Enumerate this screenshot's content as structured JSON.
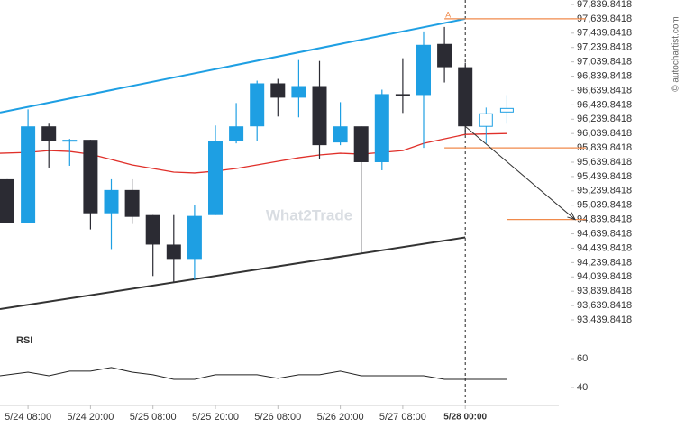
{
  "chart_data": {
    "type": "candlestick",
    "categories": [
      null,
      "5/24 08:00",
      null,
      null,
      "5/24 20:00",
      null,
      null,
      "5/25 08:00",
      null,
      null,
      "5/25 20:00",
      null,
      null,
      "5/26 08:00",
      null,
      null,
      "5/26 20:00",
      null,
      null,
      "5/27 08:00",
      null,
      null,
      "5/28 00:00"
    ],
    "candles": {
      "open": [
        95402,
        94790,
        96140,
        95940,
        95952,
        94927,
        95252,
        94902,
        94490,
        94290,
        94902,
        95940,
        96140,
        96740,
        96540,
        96702,
        95915,
        96140,
        95640,
        96590,
        96577,
        97290,
        96965
      ],
      "high": [
        95402,
        96377,
        96177,
        95965,
        95952,
        95402,
        95402,
        94902,
        94902,
        95040,
        96152,
        96465,
        96777,
        96802,
        97065,
        97052,
        96477,
        96140,
        96652,
        97090,
        97465,
        97527,
        97027
      ],
      "low": [
        94790,
        94790,
        95565,
        95590,
        94702,
        94427,
        94777,
        94052,
        93965,
        94002,
        94902,
        95902,
        95940,
        96277,
        96265,
        95690,
        95877,
        94365,
        95527,
        96327,
        95840,
        96752,
        96027
      ],
      "close": [
        94790,
        96140,
        95940,
        95952,
        94927,
        95252,
        94877,
        94490,
        94290,
        94890,
        95940,
        96140,
        96740,
        96540,
        96702,
        95877,
        96140,
        95640,
        96590,
        96565,
        97277,
        96965,
        96140
      ],
      "up_color": "#1e9fe3",
      "down_color": "#2b2b33"
    },
    "forecast_candles": {
      "open": [
        96140,
        96340
      ],
      "high": [
        96402,
        96577
      ],
      "low": [
        95902,
        96177
      ],
      "close": [
        96315,
        96390
      ],
      "color": "#1e9fe3"
    },
    "moving_average": {
      "color": "#e0302a",
      "values": [
        95765,
        95777,
        95802,
        95790,
        95752,
        95677,
        95602,
        95552,
        95502,
        95490,
        95515,
        95552,
        95602,
        95652,
        95702,
        95740,
        95765,
        95752,
        95777,
        95802,
        95902,
        95965,
        96027
      ]
    },
    "channel_top": {
      "color": "#1e9fe3",
      "values": [
        96333,
        97640
      ]
    },
    "channel_bottom": {
      "color": "#333333",
      "values": [
        93590,
        94590
      ]
    },
    "levels": {
      "color": "#f08a4b",
      "values": [
        97639.8418,
        95839.8418,
        94839.8418
      ]
    },
    "marker": "A",
    "ylim": [
      93439.8418,
      97839.8418
    ],
    "yticks": [
      {
        "value": 93439.8418,
        "label": "93,439.8418"
      },
      {
        "value": 93639.8418,
        "label": "93,639.8418"
      },
      {
        "value": 93839.8418,
        "label": "93,839.8418"
      },
      {
        "value": 94039.8418,
        "label": "94,039.8418"
      },
      {
        "value": 94239.8418,
        "label": "94,239.8418"
      },
      {
        "value": 94439.8418,
        "label": "94,439.8418"
      },
      {
        "value": 94639.8418,
        "label": "94,639.8418"
      },
      {
        "value": 94839.8418,
        "label": "94,839.8418"
      },
      {
        "value": 95039.8418,
        "label": "95,039.8418"
      },
      {
        "value": 95239.8418,
        "label": "95,239.8418"
      },
      {
        "value": 95439.8418,
        "label": "95,439.8418"
      },
      {
        "value": 95639.8418,
        "label": "95,639.8418"
      },
      {
        "value": 95839.8418,
        "label": "95,839.8418"
      },
      {
        "value": 96039.8418,
        "label": "96,039.8418"
      },
      {
        "value": 96239.8418,
        "label": "96,239.8418"
      },
      {
        "value": 96439.8418,
        "label": "96,439.8418"
      },
      {
        "value": 96639.8418,
        "label": "96,639.8418"
      },
      {
        "value": 96839.8418,
        "label": "96,839.8418"
      },
      {
        "value": 97039.8418,
        "label": "97,039.8418"
      },
      {
        "value": 97239.8418,
        "label": "97,239.8418"
      },
      {
        "value": 97439.8418,
        "label": "97,439.8418"
      },
      {
        "value": 97639.8418,
        "label": "97,639.8418"
      },
      {
        "value": 97839.8418,
        "label": "97,839.8418"
      }
    ],
    "grid": false,
    "rsi": {
      "title": "RSI",
      "color": "#222222",
      "values": [
        48.1,
        50.6,
        48.1,
        51.3,
        51.3,
        53.8,
        50.6,
        48.8,
        45.6,
        45.6,
        48.8,
        48.8,
        48.8,
        46.3,
        48.8,
        48.8,
        51.3,
        48.1,
        48.1,
        48.1,
        48.1,
        45.6,
        45.6
      ],
      "ylim": [
        30,
        70
      ],
      "yticks": [
        40,
        60
      ]
    },
    "watermark": "What2Trade",
    "source": "© autochartist.com"
  }
}
